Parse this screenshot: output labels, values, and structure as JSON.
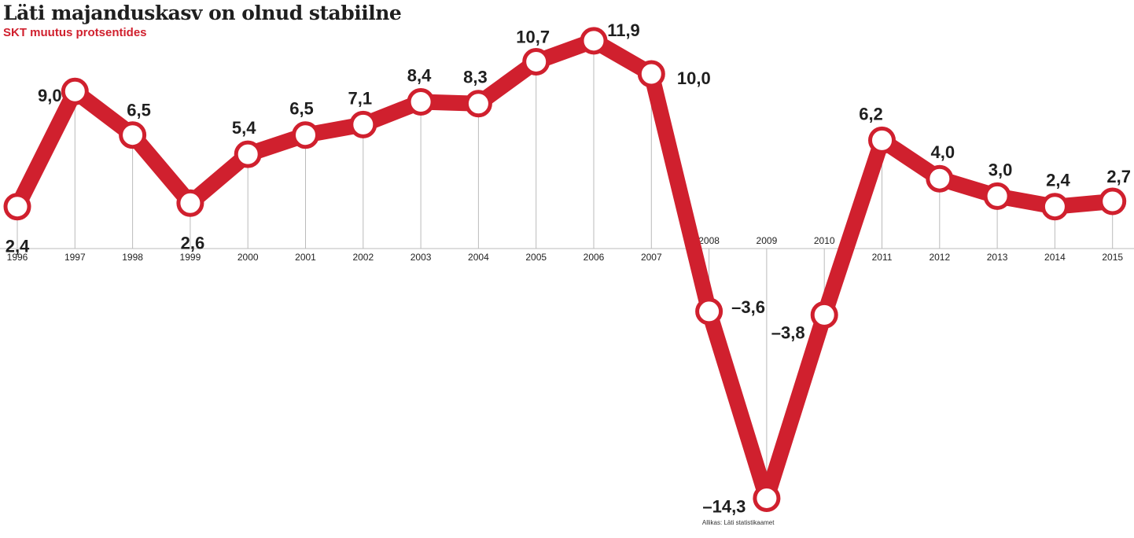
{
  "header": {
    "title": "Läti majanduskasv on olnud stabiilne",
    "subtitle": "SKT muutus protsentides"
  },
  "source": "Allikas: Läti statistikaamet",
  "colors": {
    "line": "#d0202e",
    "marker_fill": "#ffffff",
    "text": "#1f1f1f",
    "axis": "#bbbbbb"
  },
  "chart_data": {
    "type": "line",
    "title": "Läti majanduskasv on olnud stabiilne",
    "subtitle": "SKT muutus protsentides",
    "xlabel": "",
    "ylabel": "",
    "grid": false,
    "legend": "none",
    "categories": [
      "1996",
      "1997",
      "1998",
      "1999",
      "2000",
      "2001",
      "2002",
      "2003",
      "2004",
      "2005",
      "2006",
      "2007",
      "2008",
      "2009",
      "2010",
      "2011",
      "2012",
      "2013",
      "2014",
      "2015"
    ],
    "value_labels": [
      "2,4",
      "9,0",
      "6,5",
      "2,6",
      "5,4",
      "6,5",
      "7,1",
      "8,4",
      "8,3",
      "10,7",
      "11,9",
      "10,0",
      "–3,6",
      "–14,3",
      "–3,8",
      "6,2",
      "4,0",
      "3,0",
      "2,4",
      "2,7"
    ],
    "series": [
      {
        "values": [
          2.4,
          9.0,
          6.5,
          2.6,
          5.4,
          6.5,
          7.1,
          8.4,
          8.3,
          10.7,
          11.9,
          10.0,
          -3.6,
          -14.3,
          -3.8,
          6.2,
          4.0,
          3.0,
          2.4,
          2.7
        ]
      }
    ],
    "ylim": [
      -14.3,
      11.9
    ]
  }
}
